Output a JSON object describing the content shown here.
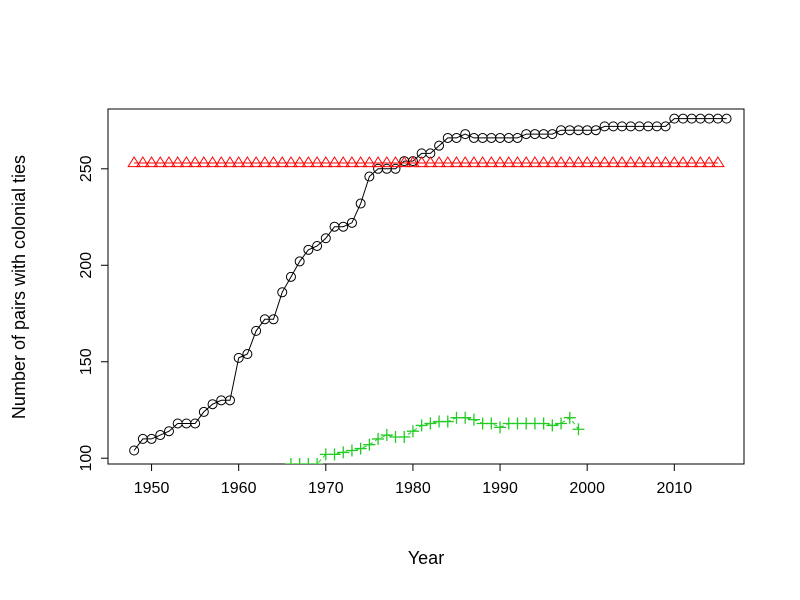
{
  "chart_data": {
    "type": "line",
    "title": "",
    "xlabel": "Year",
    "ylabel": "Number of pairs with colonial ties",
    "xlim": [
      1945,
      2018
    ],
    "ylim": [
      97,
      281
    ],
    "x_ticks": [
      1950,
      1960,
      1970,
      1980,
      1990,
      2000,
      2010
    ],
    "y_ticks": [
      100,
      150,
      200,
      250
    ],
    "grid": false,
    "legend": "none",
    "series": [
      {
        "color": "#000000",
        "marker": "circle",
        "line": "solid",
        "x": [
          1948,
          1949,
          1950,
          1951,
          1952,
          1953,
          1954,
          1955,
          1956,
          1957,
          1958,
          1959,
          1960,
          1961,
          1962,
          1963,
          1964,
          1965,
          1966,
          1967,
          1968,
          1969,
          1970,
          1971,
          1972,
          1973,
          1974,
          1975,
          1976,
          1977,
          1978,
          1979,
          1980,
          1981,
          1982,
          1983,
          1984,
          1985,
          1986,
          1987,
          1988,
          1989,
          1990,
          1991,
          1992,
          1993,
          1994,
          1995,
          1996,
          1997,
          1998,
          1999,
          2000,
          2001,
          2002,
          2003,
          2004,
          2005,
          2006,
          2007,
          2008,
          2009,
          2010,
          2011,
          2012,
          2013,
          2014,
          2015,
          2016
        ],
        "y": [
          104,
          110,
          110,
          112,
          114,
          118,
          118,
          118,
          124,
          128,
          130,
          130,
          152,
          154,
          166,
          172,
          172,
          186,
          194,
          202,
          208,
          210,
          214,
          220,
          220,
          222,
          232,
          246,
          250,
          250,
          250,
          254,
          254,
          258,
          258,
          262,
          266,
          266,
          268,
          266,
          266,
          266,
          266,
          266,
          266,
          268,
          268,
          268,
          268,
          270,
          270,
          270,
          270,
          270,
          272,
          272,
          272,
          272,
          272,
          272,
          272,
          272,
          276,
          276,
          276,
          276,
          276,
          276,
          276
        ]
      },
      {
        "color": "#ff0000",
        "marker": "triangle",
        "line": "solid",
        "x": [
          1948,
          1949,
          1950,
          1951,
          1952,
          1953,
          1954,
          1955,
          1956,
          1957,
          1958,
          1959,
          1960,
          1961,
          1962,
          1963,
          1964,
          1965,
          1966,
          1967,
          1968,
          1969,
          1970,
          1971,
          1972,
          1973,
          1974,
          1975,
          1976,
          1977,
          1978,
          1979,
          1980,
          1981,
          1982,
          1983,
          1984,
          1985,
          1986,
          1987,
          1988,
          1989,
          1990,
          1991,
          1992,
          1993,
          1994,
          1995,
          1996,
          1997,
          1998,
          1999,
          2000,
          2001,
          2002,
          2003,
          2004,
          2005,
          2006,
          2007,
          2008,
          2009,
          2010,
          2011,
          2012,
          2013,
          2014,
          2015
        ],
        "y": [
          253,
          253,
          253,
          253,
          253,
          253,
          253,
          253,
          253,
          253,
          253,
          253,
          253,
          253,
          253,
          253,
          253,
          253,
          253,
          253,
          253,
          253,
          253,
          253,
          253,
          253,
          253,
          253,
          253,
          253,
          253,
          253,
          253,
          253,
          253,
          253,
          253,
          253,
          253,
          253,
          253,
          253,
          253,
          253,
          253,
          253,
          253,
          253,
          253,
          253,
          253,
          253,
          253,
          253,
          253,
          253,
          253,
          253,
          253,
          253,
          253,
          253,
          253,
          253,
          253,
          253,
          253,
          253
        ]
      },
      {
        "color": "#22cc22",
        "marker": "plus",
        "line": "dashed",
        "x": [
          1966,
          1967,
          1968,
          1969,
          1970,
          1971,
          1972,
          1973,
          1974,
          1975,
          1976,
          1977,
          1978,
          1979,
          1980,
          1981,
          1982,
          1983,
          1984,
          1985,
          1986,
          1987,
          1988,
          1989,
          1990,
          1991,
          1992,
          1993,
          1994,
          1995,
          1996,
          1997,
          1998,
          1999
        ],
        "y": [
          97,
          97,
          97,
          97,
          102,
          102,
          103,
          104,
          105,
          107,
          110,
          112,
          111,
          111,
          114,
          117,
          118,
          119,
          119,
          121,
          121,
          120,
          118,
          118,
          116,
          118,
          118,
          118,
          118,
          118,
          117,
          118,
          121,
          115
        ]
      }
    ]
  }
}
